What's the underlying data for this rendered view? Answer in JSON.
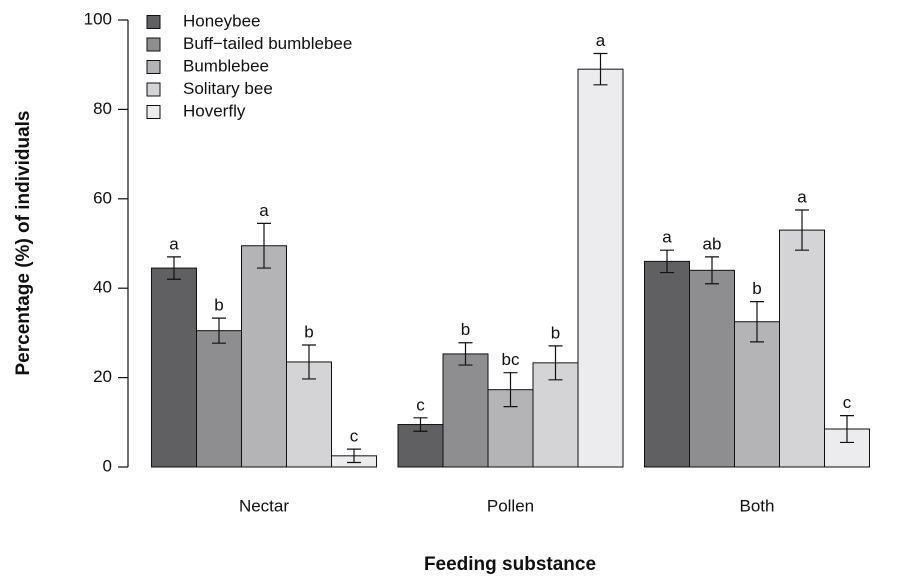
{
  "chart_data": {
    "type": "bar",
    "xlabel": "Feeding substance",
    "ylabel": "Percentage (%) of individuals",
    "categories": [
      "Nectar",
      "Pollen",
      "Both"
    ],
    "series": [
      {
        "name": "Honeybee",
        "color": "#606062",
        "values": [
          44.5,
          9.5,
          46
        ],
        "errors": [
          2.5,
          1.5,
          2.5
        ],
        "letters": [
          "a",
          "c",
          "a"
        ]
      },
      {
        "name": "Buff−tailed bumblebee",
        "color": "#8e8e90",
        "values": [
          30.5,
          25.3,
          44
        ],
        "errors": [
          2.8,
          2.5,
          3
        ],
        "letters": [
          "b",
          "b",
          "ab"
        ]
      },
      {
        "name": "Bumblebee",
        "color": "#b4b4b6",
        "values": [
          49.5,
          17.3,
          32.5
        ],
        "errors": [
          5,
          3.8,
          4.5
        ],
        "letters": [
          "a",
          "bc",
          "b"
        ]
      },
      {
        "name": "Solitary bee",
        "color": "#d4d4d6",
        "values": [
          23.5,
          23.3,
          53
        ],
        "errors": [
          3.8,
          3.8,
          4.5
        ],
        "letters": [
          "b",
          "b",
          "a"
        ]
      },
      {
        "name": "Hoverfly",
        "color": "#ececee",
        "values": [
          2.5,
          89,
          8.5
        ],
        "errors": [
          1.5,
          3.5,
          3
        ],
        "letters": [
          "c",
          "a",
          "c"
        ]
      }
    ],
    "ylim": [
      0,
      100
    ],
    "yticks": [
      0,
      20,
      40,
      60,
      80,
      100
    ],
    "legend": "upper left"
  }
}
